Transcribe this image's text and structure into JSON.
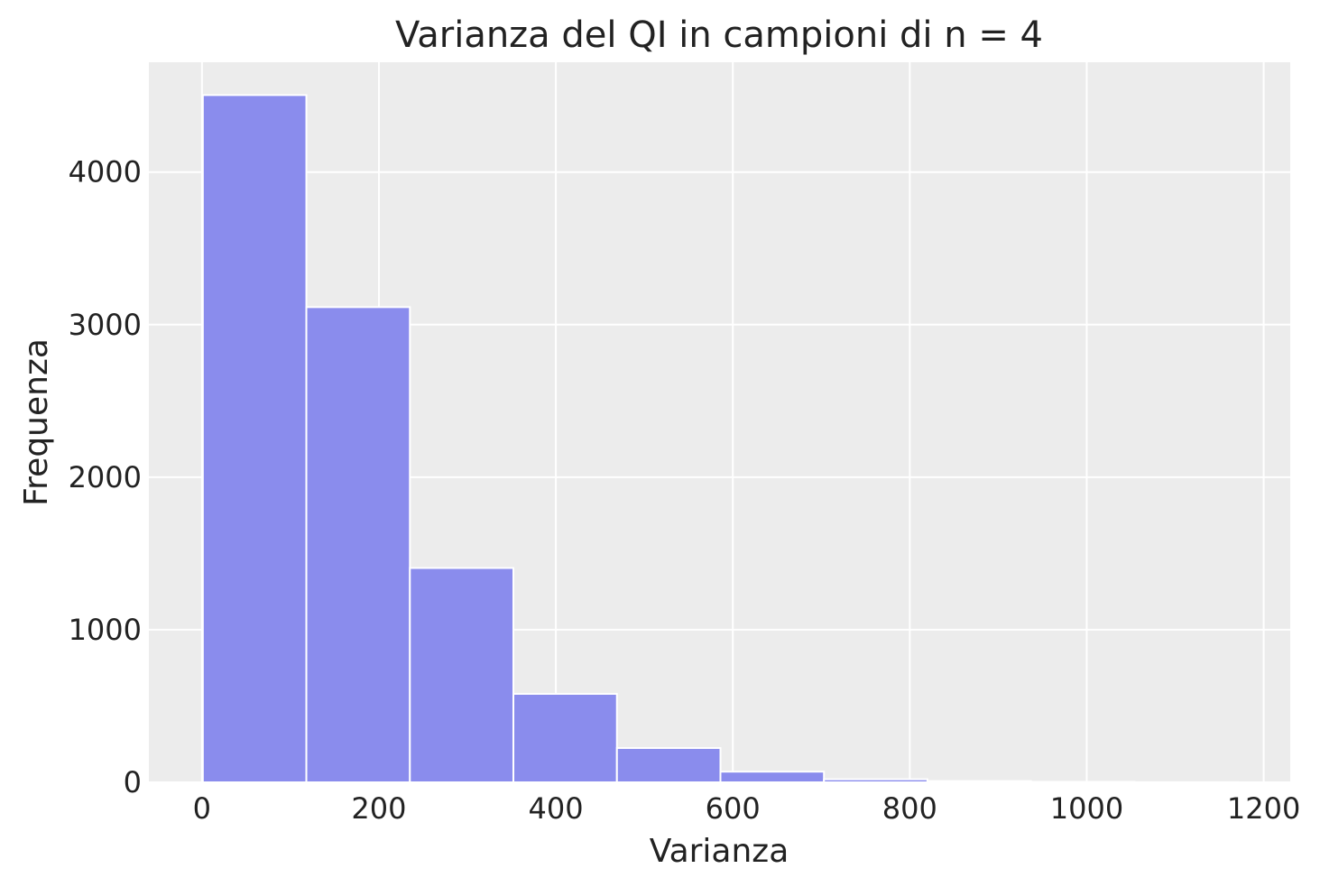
{
  "chart_data": {
    "type": "bar",
    "title": "Varianza del QI in campioni di n = 4",
    "xlabel": "Varianza",
    "ylabel": "Frequenza",
    "xlim": [
      -60,
      1230
    ],
    "ylim": [
      0,
      4720
    ],
    "x_ticks": [
      0,
      200,
      400,
      600,
      800,
      1000,
      1200
    ],
    "y_ticks": [
      0,
      1000,
      2000,
      3000,
      4000
    ],
    "bin_edges": [
      1,
      118,
      235,
      352,
      469,
      586,
      703,
      820,
      937,
      1054,
      1171
    ],
    "values": [
      4505,
      3115,
      1405,
      580,
      225,
      70,
      20,
      8,
      3,
      1
    ],
    "grid": true,
    "legend": false,
    "colors": {
      "bar_fill": "#8a8ced",
      "bar_edge": "#ffffff",
      "plot_background": "#ececec",
      "grid": "#ffffff",
      "text": "#222222"
    }
  }
}
